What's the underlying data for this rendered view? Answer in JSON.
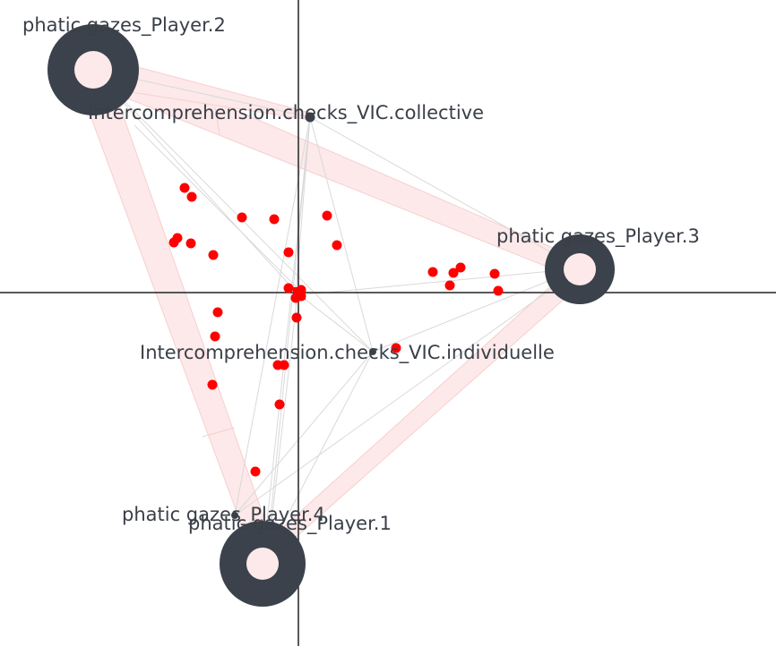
{
  "labels": {
    "player2": "phatic gazes_Player.2",
    "player3": "phatic gazes_Player.3",
    "player4": "phatic gazes_Player.4",
    "player1": "phatic gazes_Player.1",
    "collective": "Intercomprehension.checks_VIC.collective",
    "individuelle": "Intercomprehension.checks_VIC.individuelle"
  },
  "colors": {
    "node_ring": "#3b424b",
    "node_core": "#fde9e9",
    "band_fill": "#fde9e9",
    "band_edge": "#f7cfcf",
    "thin_edge": "#d9d9d9",
    "points": "#ff0000",
    "axes": "#222222",
    "label_text": "#3a3f47"
  }
}
